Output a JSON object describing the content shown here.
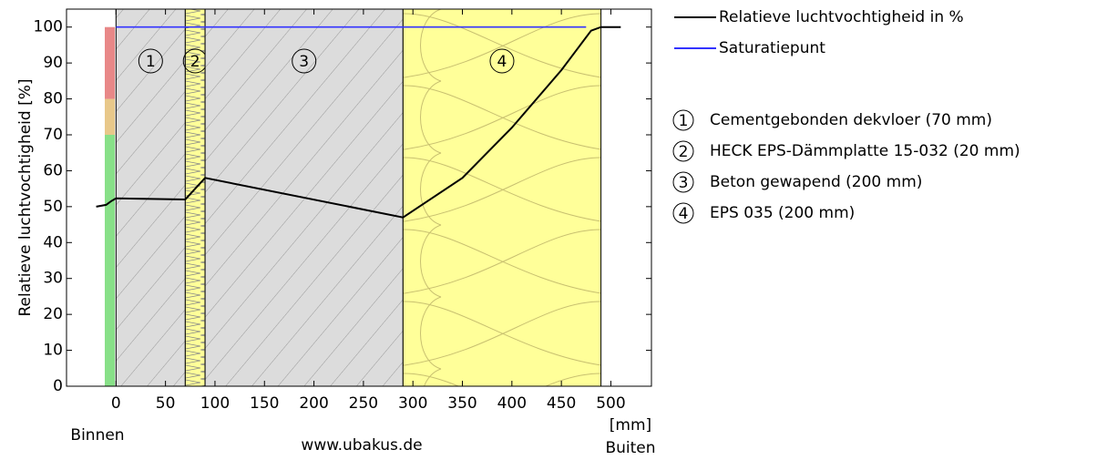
{
  "chart_data": {
    "type": "line",
    "y_label": "Relatieve luchtvochtigheid [%]",
    "x_unit": "[mm]",
    "left_label": "Binnen",
    "right_label": "Buiten",
    "footer": "www.ubakus.de",
    "xlim": [
      -50,
      541
    ],
    "ylim": [
      0,
      105
    ],
    "xticks": [
      0,
      50,
      100,
      150,
      200,
      250,
      300,
      350,
      400,
      450,
      500
    ],
    "yticks": [
      0,
      10,
      20,
      30,
      40,
      50,
      60,
      70,
      80,
      90,
      100
    ],
    "series": [
      {
        "name": "Relatieve luchtvochtigheid in %",
        "color": "#000000",
        "x": [
          -20,
          -10,
          -5,
          0,
          70,
          90,
          290,
          350,
          400,
          450,
          480,
          490,
          510
        ],
        "values": [
          50,
          50.5,
          51.5,
          52.3,
          52,
          58,
          47,
          58,
          72,
          88,
          99,
          100,
          100
        ]
      },
      {
        "name": "Saturatiepunt",
        "color": "#3333ff",
        "x": [
          0,
          475
        ],
        "values": [
          100,
          100
        ]
      }
    ],
    "bands": [
      {
        "from": 0,
        "to": 70,
        "color": "#88e088"
      },
      {
        "from": 70,
        "to": 80,
        "color": "#e8c88a"
      },
      {
        "from": 80,
        "to": 100,
        "color": "#e88888"
      }
    ],
    "layers": [
      {
        "label": "1",
        "name": "Cementgebonden dekvloer (70 mm)",
        "from": 0,
        "to": 70,
        "pattern": "hatch"
      },
      {
        "label": "2",
        "name": "HECK EPS-Dämmplatte 15-032 (20 mm)",
        "from": 70,
        "to": 90,
        "pattern": "zigzag"
      },
      {
        "label": "3",
        "name": "Beton gewapend (200 mm)",
        "from": 90,
        "to": 290,
        "pattern": "hatch"
      },
      {
        "label": "4",
        "name": "EPS 035 (200 mm)",
        "from": 290,
        "to": 490,
        "pattern": "loops"
      }
    ]
  }
}
